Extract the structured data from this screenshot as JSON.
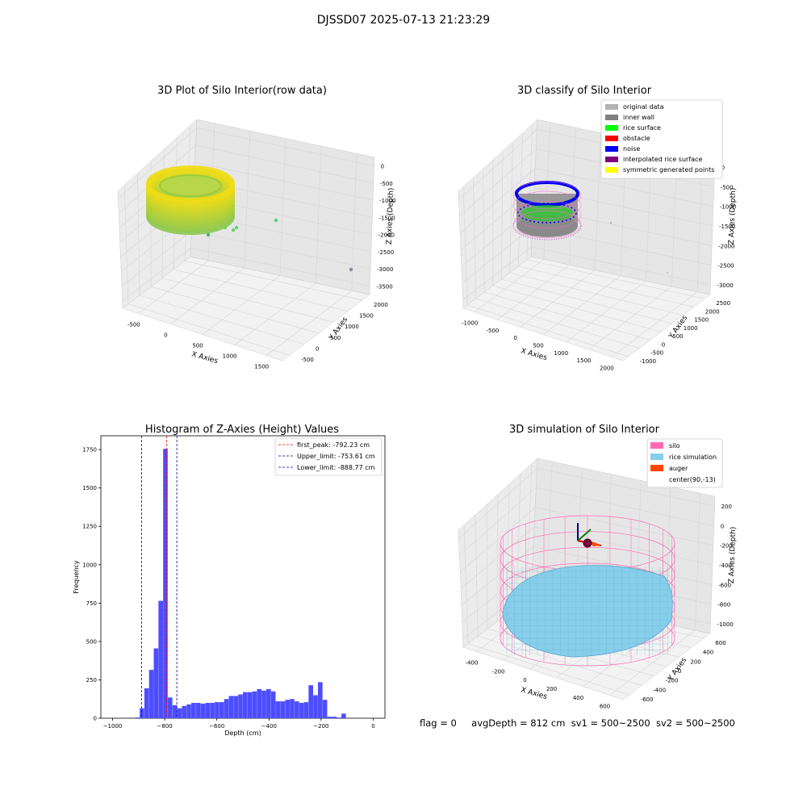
{
  "suptitle": "DJSSD07 2025-07-13 21:23:29",
  "footer": {
    "flag": "flag = 0",
    "avg_depth": "avgDepth = 812 cm",
    "sv1": "sv1 = 500~2500",
    "sv2": "sv2 = 500~2500"
  },
  "colors": {
    "hist_bar": "#4d4dff",
    "first_peak": "#ff0000",
    "limits": "#0000aa",
    "silo": "#ff69b4",
    "rice": "#87ceeb",
    "auger": "#ff4500",
    "grid_pane": "#f2f2f2"
  },
  "chart_data": [
    {
      "type": "scatter3d",
      "title": "3D Plot of Silo Interior(row data)",
      "xlabel": "X Axies",
      "ylabel": "Y Axies",
      "zlabel": "Z Axies (Depth)",
      "x_ticks": [
        "-500",
        "0",
        "500",
        "1000",
        "1500"
      ],
      "y_ticks": [
        "-500",
        "0",
        "500",
        "1000",
        "1500",
        "2000"
      ],
      "z_ticks": [
        "0",
        "-500",
        "-1000",
        "-1500",
        "-2000",
        "-2500",
        "-3000",
        "-3500"
      ],
      "colormap": "viridis-yellow-green",
      "outliers": [
        {
          "x": 950,
          "y": 700,
          "z": -1700
        },
        {
          "x": 700,
          "y": 600,
          "z": -1900
        },
        {
          "x": 650,
          "y": 500,
          "z": -2000
        },
        {
          "x": 1700,
          "y": 1800,
          "z": -3500
        }
      ]
    },
    {
      "type": "scatter3d",
      "title": "3D classify of Silo Interior",
      "xlabel": "X Axies",
      "ylabel": "Y Axies",
      "zlabel": "Z Axies (Depth)",
      "x_ticks": [
        "-1000",
        "-500",
        "0",
        "500",
        "1000",
        "1500",
        "2000"
      ],
      "y_ticks": [
        "-1000",
        "-500",
        "0",
        "500",
        "1000",
        "1500",
        "2000",
        "2500"
      ],
      "z_ticks": [
        "0",
        "-500",
        "-1000",
        "-1500",
        "-2000",
        "-2500",
        "-3000"
      ],
      "legend": [
        {
          "label": "original data",
          "color": "#b3b3b3"
        },
        {
          "label": "inner wall",
          "color": "#808080"
        },
        {
          "label": "rice surface",
          "color": "#00ff00"
        },
        {
          "label": "obstacle",
          "color": "#ff0000"
        },
        {
          "label": "noise",
          "color": "#0000ff"
        },
        {
          "label": "interpolated rice surface",
          "color": "#800080"
        },
        {
          "label": "symmetric generated points",
          "color": "#ffff00"
        }
      ],
      "legend_placement": "upper right"
    },
    {
      "type": "bar",
      "title": "Histogram of Z-Axies (Height) Values",
      "xlabel": "Depth (cm)",
      "ylabel": "Frequency",
      "xlim": [
        -1000,
        0
      ],
      "ylim": [
        0,
        1800
      ],
      "x_ticks": [
        -1000,
        -800,
        -600,
        -400,
        -200,
        0
      ],
      "y_ticks": [
        0,
        250,
        500,
        750,
        1000,
        1250,
        1500,
        1750
      ],
      "bin_width": 18,
      "bins": [
        {
          "x": -905,
          "v": 5
        },
        {
          "x": -887,
          "v": 65
        },
        {
          "x": -869,
          "v": 195
        },
        {
          "x": -851,
          "v": 315
        },
        {
          "x": -833,
          "v": 455
        },
        {
          "x": -815,
          "v": 765
        },
        {
          "x": -797,
          "v": 1755
        },
        {
          "x": -779,
          "v": 135
        },
        {
          "x": -761,
          "v": 85
        },
        {
          "x": -743,
          "v": 65
        },
        {
          "x": -725,
          "v": 80
        },
        {
          "x": -707,
          "v": 90
        },
        {
          "x": -689,
          "v": 100
        },
        {
          "x": -671,
          "v": 100
        },
        {
          "x": -653,
          "v": 95
        },
        {
          "x": -635,
          "v": 100
        },
        {
          "x": -617,
          "v": 100
        },
        {
          "x": -599,
          "v": 105
        },
        {
          "x": -581,
          "v": 105
        },
        {
          "x": -563,
          "v": 125
        },
        {
          "x": -545,
          "v": 145
        },
        {
          "x": -527,
          "v": 145
        },
        {
          "x": -509,
          "v": 155
        },
        {
          "x": -491,
          "v": 170
        },
        {
          "x": -473,
          "v": 170
        },
        {
          "x": -455,
          "v": 175
        },
        {
          "x": -437,
          "v": 190
        },
        {
          "x": -419,
          "v": 180
        },
        {
          "x": -401,
          "v": 190
        },
        {
          "x": -383,
          "v": 175
        },
        {
          "x": -365,
          "v": 110
        },
        {
          "x": -347,
          "v": 110
        },
        {
          "x": -329,
          "v": 120
        },
        {
          "x": -311,
          "v": 125
        },
        {
          "x": -293,
          "v": 110
        },
        {
          "x": -275,
          "v": 100
        },
        {
          "x": -257,
          "v": 105
        },
        {
          "x": -239,
          "v": 215
        },
        {
          "x": -221,
          "v": 150
        },
        {
          "x": -203,
          "v": 235
        },
        {
          "x": -185,
          "v": 120
        },
        {
          "x": -167,
          "v": 10
        },
        {
          "x": -149,
          "v": 10
        },
        {
          "x": -131,
          "v": 5
        },
        {
          "x": -113,
          "v": 30
        }
      ],
      "vlines": [
        {
          "label": "first_peak: -792.23 cm",
          "x": -792.23,
          "color": "#ff0000"
        },
        {
          "label": "Upper_limit: -753.61 cm",
          "x": -753.61,
          "color": "#0000aa"
        },
        {
          "label": "Lower_limit: -888.77 cm",
          "x": -888.77,
          "color": "#0000aa"
        }
      ],
      "legend_placement": "upper right"
    },
    {
      "type": "surface3d",
      "title": "3D simulation of Silo Interior",
      "xlabel": "X Axies",
      "ylabel": "Y Axies",
      "zlabel": "Z Axies (Depth)",
      "x_ticks": [
        "-400",
        "-200",
        "0",
        "200",
        "400",
        "600"
      ],
      "y_ticks": [
        "-600",
        "-400",
        "-200",
        "0",
        "200",
        "400",
        "600"
      ],
      "z_ticks": [
        "200",
        "0",
        "-200",
        "-400",
        "-600",
        "-800",
        "-1000"
      ],
      "legend": [
        {
          "label": "silo",
          "color": "#ff69b4"
        },
        {
          "label": "rice simulation",
          "color": "#87ceeb"
        },
        {
          "label": "auger",
          "color": "#ff4500"
        },
        {
          "label": "center(90,-13)",
          "color": ""
        }
      ],
      "legend_placement": "upper right"
    }
  ]
}
